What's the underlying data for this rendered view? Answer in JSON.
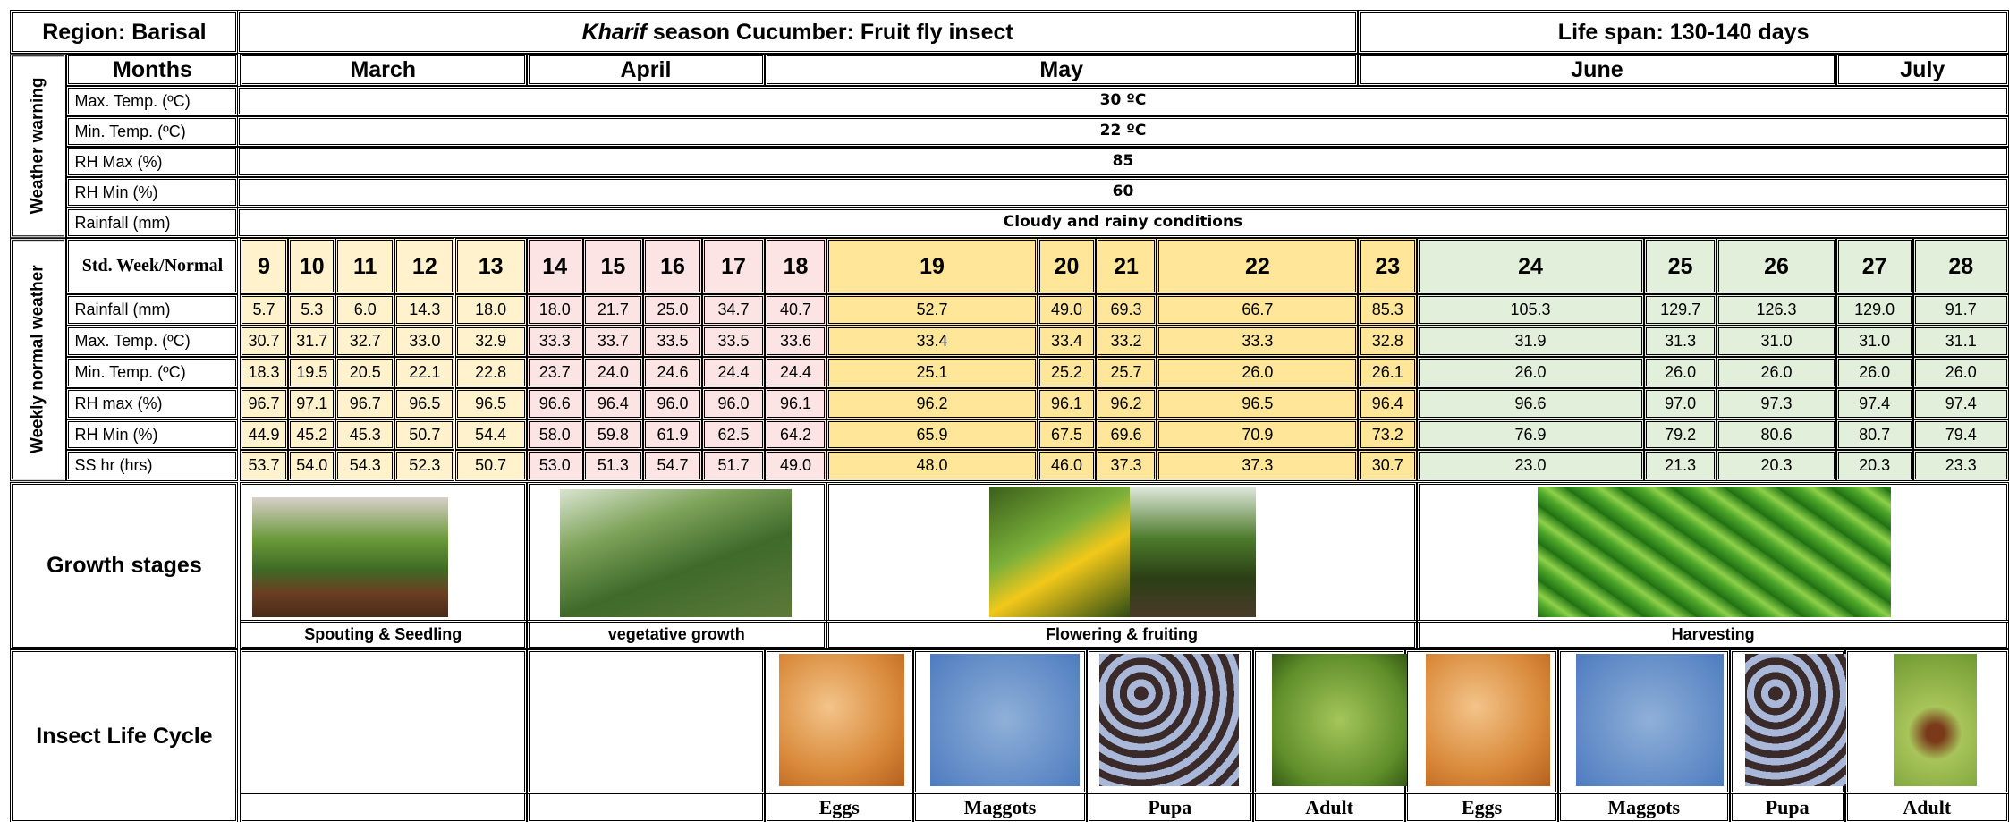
{
  "header": {
    "region": "Region: Barisal",
    "title_italic": "Kharif",
    "title_rest": "season Cucumber: Fruit fly insect",
    "life_span": "Life span: 130-140 days"
  },
  "months": {
    "label": "Months",
    "names": [
      "March",
      "April",
      "May",
      "June",
      "July"
    ]
  },
  "weather_warning": {
    "label": "Weather warning",
    "rows": [
      {
        "label": "Max. Temp. (ºC)",
        "value": "30 ºC"
      },
      {
        "label": "Min. Temp. (ºC)",
        "value": "22 ºC"
      },
      {
        "label": "RH Max (%)",
        "value": "85"
      },
      {
        "label": "RH Min (%)",
        "value": "60"
      },
      {
        "label": "Rainfall (mm)",
        "value": "Cloudy and rainy conditions"
      }
    ]
  },
  "weekly_normal": {
    "label": "Weekly normal weather",
    "week_label": "Std. Week/Normal",
    "weeks": [
      9,
      10,
      11,
      12,
      13,
      14,
      15,
      16,
      17,
      18,
      19,
      20,
      21,
      22,
      23,
      24,
      25,
      26,
      27,
      28
    ],
    "rows": [
      {
        "label": "Rainfall (mm)",
        "values": [
          "5.7",
          "5.3",
          "6.0",
          "14.3",
          "18.0",
          "18.0",
          "21.7",
          "25.0",
          "34.7",
          "40.7",
          "52.7",
          "49.0",
          "69.3",
          "66.7",
          "85.3",
          "105.3",
          "129.7",
          "126.3",
          "129.0",
          "91.7"
        ]
      },
      {
        "label": "Max. Temp. (ºC)",
        "values": [
          "30.7",
          "31.7",
          "32.7",
          "33.0",
          "32.9",
          "33.3",
          "33.7",
          "33.5",
          "33.5",
          "33.6",
          "33.4",
          "33.4",
          "33.2",
          "33.3",
          "32.8",
          "31.9",
          "31.3",
          "31.0",
          "31.0",
          "31.1"
        ]
      },
      {
        "label": "Min. Temp. (ºC)",
        "values": [
          "18.3",
          "19.5",
          "20.5",
          "22.1",
          "22.8",
          "23.7",
          "24.0",
          "24.6",
          "24.4",
          "24.4",
          "25.1",
          "25.2",
          "25.7",
          "26.0",
          "26.1",
          "26.0",
          "26.0",
          "26.0",
          "26.0",
          "26.0"
        ]
      },
      {
        "label": "RH max (%)",
        "values": [
          "96.7",
          "97.1",
          "96.7",
          "96.5",
          "96.5",
          "96.6",
          "96.4",
          "96.0",
          "96.0",
          "96.1",
          "96.2",
          "96.1",
          "96.2",
          "96.5",
          "96.4",
          "96.6",
          "97.0",
          "97.3",
          "97.4",
          "97.4"
        ]
      },
      {
        "label": "RH Min (%)",
        "values": [
          "44.9",
          "45.2",
          "45.3",
          "50.7",
          "54.4",
          "58.0",
          "59.8",
          "61.9",
          "62.5",
          "64.2",
          "65.9",
          "67.5",
          "69.6",
          "70.9",
          "73.2",
          "76.9",
          "79.2",
          "80.6",
          "80.7",
          "79.4"
        ]
      },
      {
        "label": "SS hr (hrs)",
        "values": [
          "53.7",
          "54.0",
          "54.3",
          "52.3",
          "50.7",
          "53.0",
          "51.3",
          "54.7",
          "51.7",
          "49.0",
          "48.0",
          "46.0",
          "37.3",
          "37.3",
          "30.7",
          "23.0",
          "21.3",
          "20.3",
          "20.3",
          "23.3"
        ]
      }
    ]
  },
  "growth_stages": {
    "label": "Growth stages",
    "stages": [
      "Spouting & Seedling",
      "vegetative growth",
      "Flowering & fruiting",
      "Harvesting"
    ]
  },
  "insect_life_cycle": {
    "label": "Insect Life Cycle",
    "stages": [
      "Eggs",
      "Maggots",
      "Pupa",
      "Adult",
      "Eggs",
      "Maggots",
      "Pupa",
      "Adult"
    ]
  }
}
